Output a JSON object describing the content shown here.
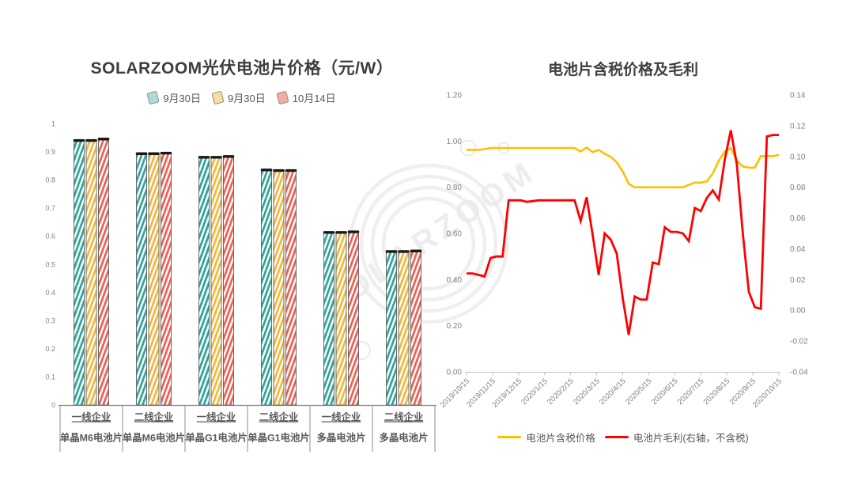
{
  "watermark": {
    "text": "SOLARZOOM",
    "color": "#d9d9d9"
  },
  "chart_data": [
    {
      "type": "bar",
      "title": "SOLARZOOM光伏电池片价格（元/W）",
      "ylim": [
        0,
        1
      ],
      "yticks": [
        [
          "1",
          1
        ],
        [
          "0.9",
          0.9
        ],
        [
          "0.8",
          0.8
        ],
        [
          "0.7",
          0.7
        ],
        [
          "0.6",
          0.6
        ],
        [
          "0.5",
          0.5
        ],
        [
          "0.4",
          0.4
        ],
        [
          "0.3",
          0.3
        ],
        [
          "0.2",
          0.2
        ],
        [
          "0.1",
          0.1
        ],
        [
          "0",
          0
        ]
      ],
      "legend": [
        {
          "label": "9月30日",
          "swatch_fill": "#aedbd5",
          "swatch_border": "#8c8c8c",
          "hatch": "#2fa39b"
        },
        {
          "label": "9月30日",
          "swatch_fill": "#f9dd9b",
          "swatch_border": "#8c8c8c",
          "hatch": "#f2b63c"
        },
        {
          "label": "10月14日",
          "swatch_fill": "#f5aba2",
          "swatch_border": "#8c8c8c",
          "hatch": "#ec5f53"
        }
      ],
      "categories": [
        {
          "line1": "一线企业",
          "line2": "单晶M6电池片"
        },
        {
          "line1": "二线企业",
          "line2": "单晶M6电池片"
        },
        {
          "line1": "一线企业",
          "line2": "单晶G1电池片"
        },
        {
          "line1": "二线企业",
          "line2": "单晶G1电池片"
        },
        {
          "line1": "一线企业",
          "line2": "多晶电池片"
        },
        {
          "line1": "二线企业",
          "line2": "多晶电池片"
        }
      ],
      "series": [
        {
          "name": "9月30日",
          "values": [
            0.94,
            0.893,
            0.88,
            0.835,
            0.613,
            0.545
          ]
        },
        {
          "name": "9月30日",
          "values": [
            0.94,
            0.893,
            0.88,
            0.833,
            0.613,
            0.545
          ]
        },
        {
          "name": "10月14日",
          "values": [
            0.945,
            0.895,
            0.883,
            0.833,
            0.615,
            0.547
          ]
        }
      ]
    },
    {
      "type": "line",
      "title": "电池片含税价格及毛利",
      "x_tick_labels": [
        "2019/10/15",
        "2019/11/15",
        "2019/12/15",
        "2020/1/15",
        "2020/2/15",
        "2020/3/15",
        "2020/4/15",
        "2020/5/15",
        "2020/6/15",
        "2020/7/15",
        "2020/8/15",
        "2020/9/15",
        "2020/10/15"
      ],
      "left_axis": {
        "min": 0,
        "max": 1.2,
        "ticks": [
          [
            "1.20",
            1.2
          ],
          [
            "1.00",
            1.0
          ],
          [
            "0.80",
            0.8
          ],
          [
            "0.60",
            0.6
          ],
          [
            "0.40",
            0.4
          ],
          [
            "0.20",
            0.2
          ],
          [
            "0.00",
            0.0
          ]
        ]
      },
      "right_axis": {
        "min": -0.04,
        "max": 0.14,
        "ticks": [
          [
            "0.14",
            0.14
          ],
          [
            "0.12",
            0.12
          ],
          [
            "0.10",
            0.1
          ],
          [
            "0.08",
            0.08
          ],
          [
            "0.06",
            0.06
          ],
          [
            "0.04",
            0.04
          ],
          [
            "0.02",
            0.02
          ],
          [
            "0.00",
            0.0
          ],
          [
            "-0.02",
            -0.02
          ],
          [
            "-0.04",
            -0.04
          ]
        ]
      },
      "series": [
        {
          "name": "电池片含税价格",
          "axis": "left",
          "color": "#FFC000",
          "points": [
            [
              0,
              0.962
            ],
            [
              1,
              0.962
            ],
            [
              2,
              0.962
            ],
            [
              3,
              0.965
            ],
            [
              4,
              0.97
            ],
            [
              5,
              0.97
            ],
            [
              6,
              0.97
            ],
            [
              7,
              0.97
            ],
            [
              8,
              0.97
            ],
            [
              9,
              0.97
            ],
            [
              10,
              0.97
            ],
            [
              11,
              0.97
            ],
            [
              12,
              0.97
            ],
            [
              13,
              0.97
            ],
            [
              14,
              0.97
            ],
            [
              15,
              0.97
            ],
            [
              16,
              0.97
            ],
            [
              17,
              0.97
            ],
            [
              18,
              0.97
            ],
            [
              19,
              0.955
            ],
            [
              20,
              0.972
            ],
            [
              21,
              0.952
            ],
            [
              22,
              0.962
            ],
            [
              23,
              0.945
            ],
            [
              24,
              0.932
            ],
            [
              25,
              0.908
            ],
            [
              26,
              0.868
            ],
            [
              27,
              0.815
            ],
            [
              28,
              0.8
            ],
            [
              29,
              0.8
            ],
            [
              30,
              0.8
            ],
            [
              31,
              0.8
            ],
            [
              32,
              0.8
            ],
            [
              33,
              0.8
            ],
            [
              34,
              0.8
            ],
            [
              35,
              0.8
            ],
            [
              36,
              0.8
            ],
            [
              37,
              0.81
            ],
            [
              38,
              0.82
            ],
            [
              39,
              0.82
            ],
            [
              40,
              0.825
            ],
            [
              41,
              0.86
            ],
            [
              42,
              0.915
            ],
            [
              43,
              0.955
            ],
            [
              44,
              0.97
            ],
            [
              45,
              0.915
            ],
            [
              46,
              0.89
            ],
            [
              47,
              0.885
            ],
            [
              48,
              0.885
            ],
            [
              49,
              0.935
            ],
            [
              50,
              0.935
            ],
            [
              51,
              0.935
            ],
            [
              52,
              0.94
            ]
          ]
        },
        {
          "name": "电池片毛利(右轴，不含税)",
          "axis": "right",
          "color": "#FE0000",
          "points": [
            [
              0,
              0.024
            ],
            [
              1,
              0.024
            ],
            [
              2,
              0.023
            ],
            [
              3,
              0.022
            ],
            [
              4,
              0.034
            ],
            [
              5,
              0.035
            ],
            [
              6,
              0.035
            ],
            [
              7,
              0.0715
            ],
            [
              8,
              0.0715
            ],
            [
              9,
              0.0715
            ],
            [
              10,
              0.0705
            ],
            [
              11,
              0.071
            ],
            [
              12,
              0.0715
            ],
            [
              13,
              0.0715
            ],
            [
              14,
              0.0715
            ],
            [
              15,
              0.0715
            ],
            [
              16,
              0.0715
            ],
            [
              17,
              0.0715
            ],
            [
              18,
              0.0715
            ],
            [
              19,
              0.058
            ],
            [
              20,
              0.0735
            ],
            [
              21,
              0.049
            ],
            [
              22,
              0.023
            ],
            [
              23,
              0.05
            ],
            [
              24,
              0.046
            ],
            [
              25,
              0.037
            ],
            [
              26,
              0.008
            ],
            [
              27,
              -0.016
            ],
            [
              28,
              0.009
            ],
            [
              29,
              0.007
            ],
            [
              30,
              0.007
            ],
            [
              31,
              0.031
            ],
            [
              32,
              0.03
            ],
            [
              33,
              0.054
            ],
            [
              34,
              0.051
            ],
            [
              35,
              0.051
            ],
            [
              36,
              0.05
            ],
            [
              37,
              0.045
            ],
            [
              38,
              0.0665
            ],
            [
              39,
              0.0645
            ],
            [
              40,
              0.073
            ],
            [
              41,
              0.078
            ],
            [
              42,
              0.072
            ],
            [
              43,
              0.098
            ],
            [
              44,
              0.117
            ],
            [
              45,
              0.095
            ],
            [
              46,
              0.05
            ],
            [
              47,
              0.012
            ],
            [
              48,
              0.002
            ],
            [
              49,
              0.001
            ],
            [
              50,
              0.113
            ],
            [
              51,
              0.114
            ],
            [
              52,
              0.114
            ]
          ]
        }
      ]
    }
  ]
}
